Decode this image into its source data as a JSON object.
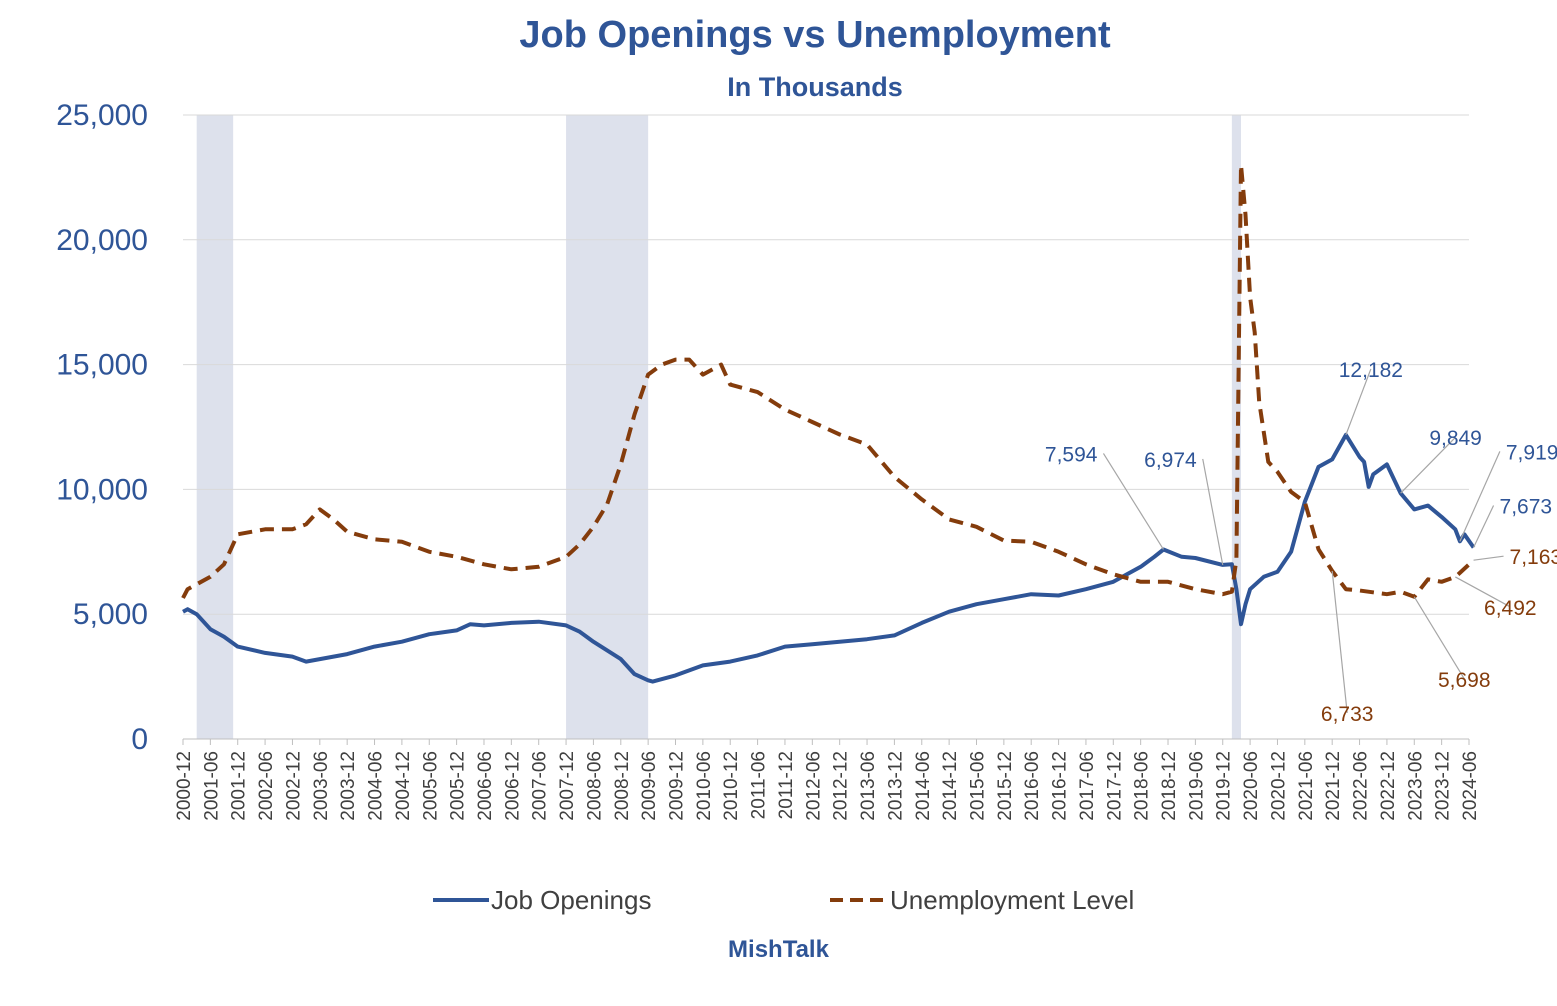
{
  "title": "Job Openings vs Unemployment",
  "subtitle": "In Thousands",
  "credit": "MishTalk",
  "chart_data": {
    "type": "line",
    "title": "Job Openings vs Unemployment",
    "subtitle": "In Thousands",
    "ylim": [
      0,
      25000
    ],
    "yticks": [
      0,
      5000,
      10000,
      15000,
      20000,
      25000
    ],
    "ytick_labels": [
      "0",
      "5,000",
      "10,000",
      "15,000",
      "20,000",
      "25,000"
    ],
    "x_labels": [
      "2000-12",
      "2001-06",
      "2001-12",
      "2002-06",
      "2002-12",
      "2003-06",
      "2003-12",
      "2004-06",
      "2004-12",
      "2005-06",
      "2005-12",
      "2006-06",
      "2006-12",
      "2007-06",
      "2007-12",
      "2008-06",
      "2008-12",
      "2009-06",
      "2009-12",
      "2010-06",
      "2010-12",
      "2011-06",
      "2011-12",
      "2012-06",
      "2012-12",
      "2013-06",
      "2013-12",
      "2014-06",
      "2014-12",
      "2015-06",
      "2015-12",
      "2016-06",
      "2016-12",
      "2017-06",
      "2017-12",
      "2018-06",
      "2018-12",
      "2019-06",
      "2019-12",
      "2020-06",
      "2020-12",
      "2021-06",
      "2021-12",
      "2022-06",
      "2022-12",
      "2023-06",
      "2023-12",
      "2024-06"
    ],
    "grid": true,
    "legend_position": "bottom",
    "recessions": [
      {
        "start": "2001-03",
        "end": "2001-11"
      },
      {
        "start": "2007-12",
        "end": "2009-06"
      },
      {
        "start": "2020-02",
        "end": "2020-04"
      }
    ],
    "colors": {
      "job_openings": "#2F5597",
      "unemployment": "#843C0C",
      "recession": "#DDE1EC",
      "grid": "#D9D9D9"
    },
    "series": [
      {
        "name": "Job Openings",
        "style": "solid",
        "points": [
          [
            "2000-12",
            5100
          ],
          [
            "2001-01",
            5200
          ],
          [
            "2001-03",
            5000
          ],
          [
            "2001-06",
            4400
          ],
          [
            "2001-09",
            4100
          ],
          [
            "2001-12",
            3700
          ],
          [
            "2002-06",
            3450
          ],
          [
            "2002-12",
            3300
          ],
          [
            "2003-03",
            3100
          ],
          [
            "2003-06",
            3200
          ],
          [
            "2003-09",
            3300
          ],
          [
            "2003-12",
            3400
          ],
          [
            "2004-06",
            3700
          ],
          [
            "2004-12",
            3900
          ],
          [
            "2005-06",
            4200
          ],
          [
            "2005-12",
            4350
          ],
          [
            "2006-03",
            4600
          ],
          [
            "2006-06",
            4550
          ],
          [
            "2006-12",
            4650
          ],
          [
            "2007-06",
            4700
          ],
          [
            "2007-12",
            4550
          ],
          [
            "2008-03",
            4300
          ],
          [
            "2008-06",
            3900
          ],
          [
            "2008-12",
            3200
          ],
          [
            "2009-03",
            2600
          ],
          [
            "2009-06",
            2350
          ],
          [
            "2009-07",
            2300
          ],
          [
            "2009-12",
            2550
          ],
          [
            "2010-06",
            2950
          ],
          [
            "2010-12",
            3100
          ],
          [
            "2011-06",
            3350
          ],
          [
            "2011-12",
            3700
          ],
          [
            "2012-06",
            3800
          ],
          [
            "2012-12",
            3900
          ],
          [
            "2013-06",
            4000
          ],
          [
            "2013-12",
            4150
          ],
          [
            "2014-06",
            4650
          ],
          [
            "2014-12",
            5100
          ],
          [
            "2015-06",
            5400
          ],
          [
            "2015-12",
            5600
          ],
          [
            "2016-06",
            5800
          ],
          [
            "2016-12",
            5750
          ],
          [
            "2017-06",
            6000
          ],
          [
            "2017-12",
            6300
          ],
          [
            "2018-06",
            6900
          ],
          [
            "2018-09",
            7300
          ],
          [
            "2018-11",
            7594
          ],
          [
            "2019-03",
            7300
          ],
          [
            "2019-06",
            7250
          ],
          [
            "2019-12",
            6974
          ],
          [
            "2020-02",
            7000
          ],
          [
            "2020-03",
            6000
          ],
          [
            "2020-04",
            4600
          ],
          [
            "2020-05",
            5400
          ],
          [
            "2020-06",
            6000
          ],
          [
            "2020-09",
            6500
          ],
          [
            "2020-12",
            6700
          ],
          [
            "2021-03",
            7500
          ],
          [
            "2021-06",
            9500
          ],
          [
            "2021-09",
            10900
          ],
          [
            "2021-12",
            11200
          ],
          [
            "2022-03",
            12182
          ],
          [
            "2022-06",
            11300
          ],
          [
            "2022-07",
            11100
          ],
          [
            "2022-08",
            10100
          ],
          [
            "2022-09",
            10600
          ],
          [
            "2022-12",
            11000
          ],
          [
            "2023-03",
            9849
          ],
          [
            "2023-06",
            9200
          ],
          [
            "2023-09",
            9350
          ],
          [
            "2023-12",
            8900
          ],
          [
            "2024-03",
            8400
          ],
          [
            "2024-04",
            7919
          ],
          [
            "2024-05",
            8200
          ],
          [
            "2024-07",
            7673
          ]
        ]
      },
      {
        "name": "Unemployment Level",
        "style": "dashed",
        "points": [
          [
            "2000-12",
            5650
          ],
          [
            "2001-01",
            6000
          ],
          [
            "2001-06",
            6500
          ],
          [
            "2001-09",
            7000
          ],
          [
            "2001-12",
            8200
          ],
          [
            "2002-06",
            8400
          ],
          [
            "2002-12",
            8400
          ],
          [
            "2003-03",
            8600
          ],
          [
            "2003-06",
            9200
          ],
          [
            "2003-09",
            8800
          ],
          [
            "2003-12",
            8300
          ],
          [
            "2004-06",
            8000
          ],
          [
            "2004-12",
            7900
          ],
          [
            "2005-06",
            7500
          ],
          [
            "2005-12",
            7300
          ],
          [
            "2006-06",
            7000
          ],
          [
            "2006-12",
            6800
          ],
          [
            "2007-06",
            6900
          ],
          [
            "2007-12",
            7300
          ],
          [
            "2008-03",
            7800
          ],
          [
            "2008-06",
            8500
          ],
          [
            "2008-09",
            9400
          ],
          [
            "2008-12",
            11000
          ],
          [
            "2009-03",
            13000
          ],
          [
            "2009-06",
            14600
          ],
          [
            "2009-09",
            15000
          ],
          [
            "2009-12",
            15200
          ],
          [
            "2010-03",
            15200
          ],
          [
            "2010-06",
            14600
          ],
          [
            "2010-10",
            15000
          ],
          [
            "2010-12",
            14200
          ],
          [
            "2011-06",
            13900
          ],
          [
            "2011-12",
            13200
          ],
          [
            "2012-06",
            12700
          ],
          [
            "2012-12",
            12200
          ],
          [
            "2013-06",
            11800
          ],
          [
            "2013-12",
            10500
          ],
          [
            "2014-06",
            9600
          ],
          [
            "2014-12",
            8800
          ],
          [
            "2015-06",
            8500
          ],
          [
            "2015-12",
            7950
          ],
          [
            "2016-06",
            7900
          ],
          [
            "2016-12",
            7500
          ],
          [
            "2017-06",
            7000
          ],
          [
            "2017-12",
            6600
          ],
          [
            "2018-06",
            6300
          ],
          [
            "2018-12",
            6300
          ],
          [
            "2019-06",
            6000
          ],
          [
            "2019-12",
            5800
          ],
          [
            "2020-02",
            5900
          ],
          [
            "2020-03",
            7200
          ],
          [
            "2020-04",
            23000
          ],
          [
            "2020-05",
            21000
          ],
          [
            "2020-06",
            17700
          ],
          [
            "2020-07",
            16300
          ],
          [
            "2020-08",
            13500
          ],
          [
            "2020-10",
            11100
          ],
          [
            "2020-12",
            10700
          ],
          [
            "2021-03",
            9900
          ],
          [
            "2021-06",
            9500
          ],
          [
            "2021-09",
            7600
          ],
          [
            "2021-12",
            6733
          ],
          [
            "2022-03",
            6000
          ],
          [
            "2022-06",
            5950
          ],
          [
            "2022-12",
            5800
          ],
          [
            "2023-03",
            5900
          ],
          [
            "2023-06",
            5698
          ],
          [
            "2023-09",
            6400
          ],
          [
            "2023-12",
            6300
          ],
          [
            "2024-03",
            6492
          ],
          [
            "2024-07",
            7163
          ]
        ]
      }
    ],
    "annotations": [
      {
        "text": "7,594",
        "series": "Job Openings",
        "x": "2018-11",
        "y": 7594
      },
      {
        "text": "6,974",
        "series": "Job Openings",
        "x": "2019-12",
        "y": 6974
      },
      {
        "text": "12,182",
        "series": "Job Openings",
        "x": "2022-03",
        "y": 12182
      },
      {
        "text": "9,849",
        "series": "Job Openings",
        "x": "2023-03",
        "y": 9849
      },
      {
        "text": "7,919",
        "series": "Job Openings",
        "x": "2024-04",
        "y": 7919
      },
      {
        "text": "7,673",
        "series": "Job Openings",
        "x": "2024-07",
        "y": 7673
      },
      {
        "text": "6,733",
        "series": "Unemployment Level",
        "x": "2021-12",
        "y": 6733
      },
      {
        "text": "5,698",
        "series": "Unemployment Level",
        "x": "2023-06",
        "y": 5698
      },
      {
        "text": "6,492",
        "series": "Unemployment Level",
        "x": "2024-03",
        "y": 6492
      },
      {
        "text": "7,163",
        "series": "Unemployment Level",
        "x": "2024-07",
        "y": 7163
      }
    ]
  }
}
